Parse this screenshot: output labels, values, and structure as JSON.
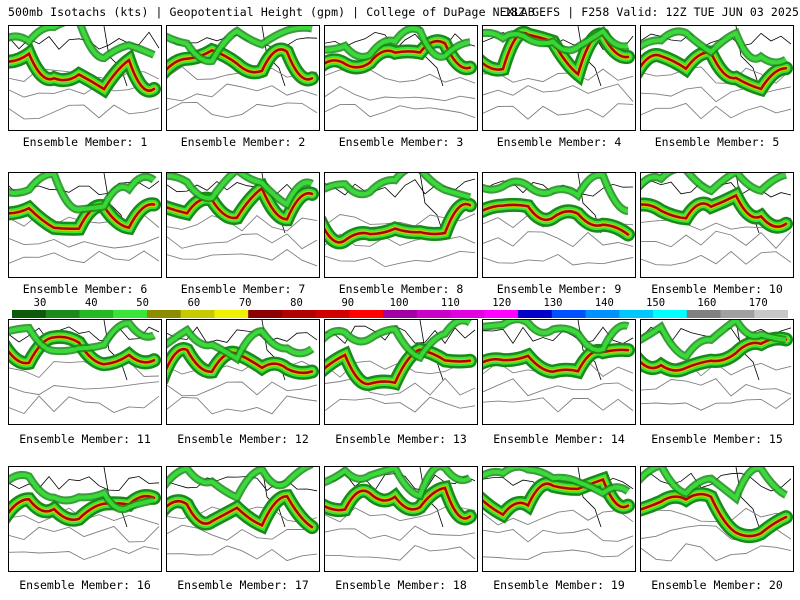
{
  "header": {
    "left": "500mb Isotachs (kts) | Geopotential Height (gpm) | College of DuPage NEXLAB",
    "right": "18Z GEFS | F258 Valid: 12Z TUE JUN 03 2025"
  },
  "colorbar": {
    "labels": [
      "30",
      "40",
      "50",
      "60",
      "70",
      "80",
      "90",
      "100",
      "110",
      "120",
      "130",
      "140",
      "150",
      "160",
      "170"
    ],
    "colors": [
      "#0d5a0d",
      "#1a8a1a",
      "#25b825",
      "#39e539",
      "#8c8c00",
      "#c8c800",
      "#f0f000",
      "#8b0000",
      "#b00000",
      "#d00000",
      "#ff0000",
      "#a000a0",
      "#c800c8",
      "#e000e0",
      "#ff00ff",
      "#0000c8",
      "#0050ff",
      "#0090ff",
      "#00c8ff",
      "#00ffff",
      "#808080",
      "#a0a0a0",
      "#c8c8c8"
    ]
  },
  "members": [
    {
      "label": "Ensemble Member: 1"
    },
    {
      "label": "Ensemble Member: 2"
    },
    {
      "label": "Ensemble Member: 3"
    },
    {
      "label": "Ensemble Member: 4"
    },
    {
      "label": "Ensemble Member: 5"
    },
    {
      "label": "Ensemble Member: 6"
    },
    {
      "label": "Ensemble Member: 7"
    },
    {
      "label": "Ensemble Member: 8"
    },
    {
      "label": "Ensemble Member: 9"
    },
    {
      "label": "Ensemble Member: 10"
    },
    {
      "label": "Ensemble Member: 11"
    },
    {
      "label": "Ensemble Member: 12"
    },
    {
      "label": "Ensemble Member: 13"
    },
    {
      "label": "Ensemble Member: 14"
    },
    {
      "label": "Ensemble Member: 15"
    },
    {
      "label": "Ensemble Member: 16"
    },
    {
      "label": "Ensemble Member: 17"
    },
    {
      "label": "Ensemble Member: 18"
    },
    {
      "label": "Ensemble Member: 19"
    },
    {
      "label": "Ensemble Member: 20"
    }
  ]
}
